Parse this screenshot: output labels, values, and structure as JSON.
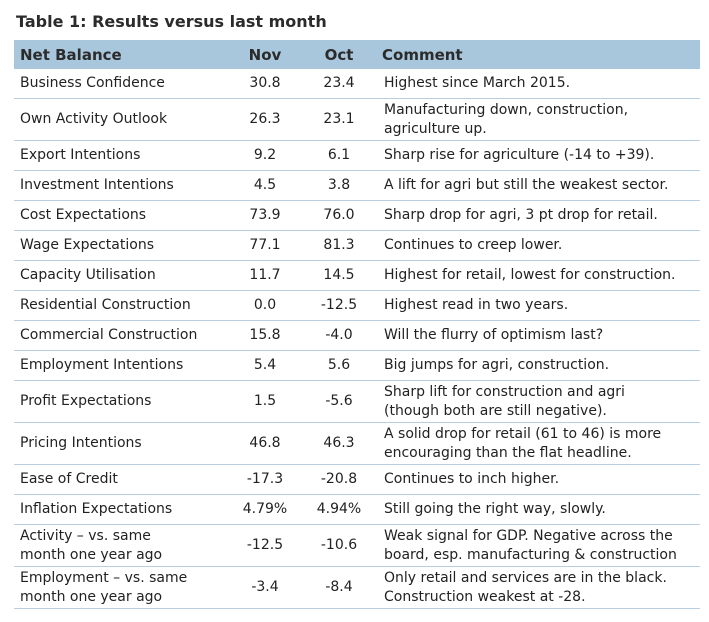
{
  "title": "Table 1: Results versus last month",
  "header": {
    "label": "Net Balance",
    "nov": "Nov",
    "oct": "Oct",
    "comment": "Comment"
  },
  "rows": [
    {
      "label": "Business Confidence",
      "nov": "30.8",
      "oct": "23.4",
      "comment": "Highest since March 2015."
    },
    {
      "label": "Own Activity Outlook",
      "nov": "26.3",
      "oct": "23.1",
      "comment": "Manufacturing down, construction,\nagriculture up."
    },
    {
      "label": "Export Intentions",
      "nov": "9.2",
      "oct": "6.1",
      "comment": "Sharp rise for agriculture (-14 to +39)."
    },
    {
      "label": "Investment Intentions",
      "nov": "4.5",
      "oct": "3.8",
      "comment": "A lift for agri but still the weakest sector."
    },
    {
      "label": "Cost Expectations",
      "nov": "73.9",
      "oct": "76.0",
      "comment": "Sharp drop for agri, 3 pt drop for retail."
    },
    {
      "label": "Wage Expectations",
      "nov": "77.1",
      "oct": "81.3",
      "comment": "Continues to creep lower."
    },
    {
      "label": "Capacity Utilisation",
      "nov": "11.7",
      "oct": "14.5",
      "comment": "Highest for retail, lowest for construction."
    },
    {
      "label": "Residential Construction",
      "nov": "0.0",
      "oct": "-12.5",
      "comment": "Highest read in two years."
    },
    {
      "label": "Commercial Construction",
      "nov": "15.8",
      "oct": "-4.0",
      "comment": "Will the flurry of optimism last?"
    },
    {
      "label": "Employment Intentions",
      "nov": "5.4",
      "oct": "5.6",
      "comment": "Big jumps for agri, construction."
    },
    {
      "label": "Profit Expectations",
      "nov": "1.5",
      "oct": "-5.6",
      "comment": "Sharp lift for construction and agri\n(though both are still negative)."
    },
    {
      "label": "Pricing Intentions",
      "nov": "46.8",
      "oct": "46.3",
      "comment": "A solid drop for retail (61 to 46) is more\nencouraging than the flat headline."
    },
    {
      "label": "Ease of Credit",
      "nov": "-17.3",
      "oct": "-20.8",
      "comment": "Continues to inch higher."
    },
    {
      "label": "Inflation Expectations",
      "nov": "4.79%",
      "oct": "4.94%",
      "comment": "Still going the right way, slowly."
    },
    {
      "label": "Activity – vs. same\nmonth one year ago",
      "nov": "-12.5",
      "oct": "-10.6",
      "comment": "Weak signal for GDP. Negative across the\nboard, esp. manufacturing & construction"
    },
    {
      "label": "Employment – vs. same\nmonth one year ago",
      "nov": "-3.4",
      "oct": "-8.4",
      "comment": "Only retail and services are in the black.\nConstruction weakest at -28."
    }
  ]
}
